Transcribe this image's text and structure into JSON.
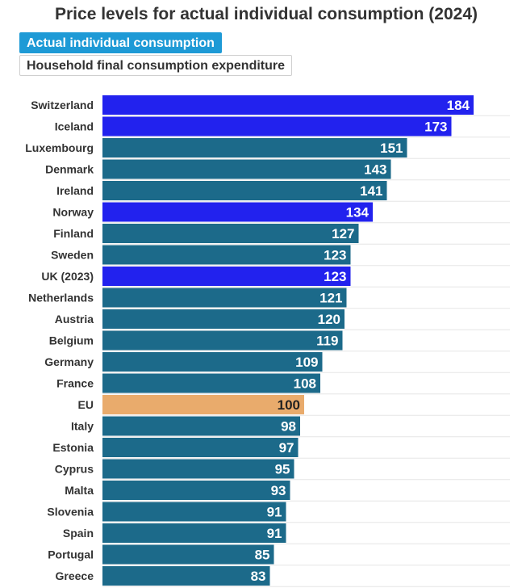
{
  "title": "Price levels for actual individual consumption (2024)",
  "toggles": [
    {
      "label": "Actual individual consumption",
      "active": true
    },
    {
      "label": "Household final consumption expenditure",
      "active": false
    }
  ],
  "colors": {
    "default": "#1c6a8a",
    "highlight": "#2222ee",
    "eu": "#e9ab6c",
    "value_text": "#ffffff",
    "eu_value_text": "#222222"
  },
  "chart_data": {
    "type": "bar",
    "orientation": "horizontal",
    "title": "Price levels for actual individual consumption (2024)",
    "xlabel": "",
    "ylabel": "",
    "xlim": [
      0,
      200
    ],
    "grid": true,
    "categories": [
      "Switzerland",
      "Iceland",
      "Luxembourg",
      "Denmark",
      "Ireland",
      "Norway",
      "Finland",
      "Sweden",
      "UK (2023)",
      "Netherlands",
      "Austria",
      "Belgium",
      "Germany",
      "France",
      "EU",
      "Italy",
      "Estonia",
      "Cyprus",
      "Malta",
      "Slovenia",
      "Spain",
      "Portugal",
      "Greece"
    ],
    "values": [
      184,
      173,
      151,
      143,
      141,
      134,
      127,
      123,
      123,
      121,
      120,
      119,
      109,
      108,
      100,
      98,
      97,
      95,
      93,
      91,
      91,
      85,
      83
    ],
    "groups": [
      "highlight",
      "highlight",
      "default",
      "default",
      "default",
      "highlight",
      "default",
      "default",
      "highlight",
      "default",
      "default",
      "default",
      "default",
      "default",
      "eu",
      "default",
      "default",
      "default",
      "default",
      "default",
      "default",
      "default",
      "default"
    ]
  }
}
